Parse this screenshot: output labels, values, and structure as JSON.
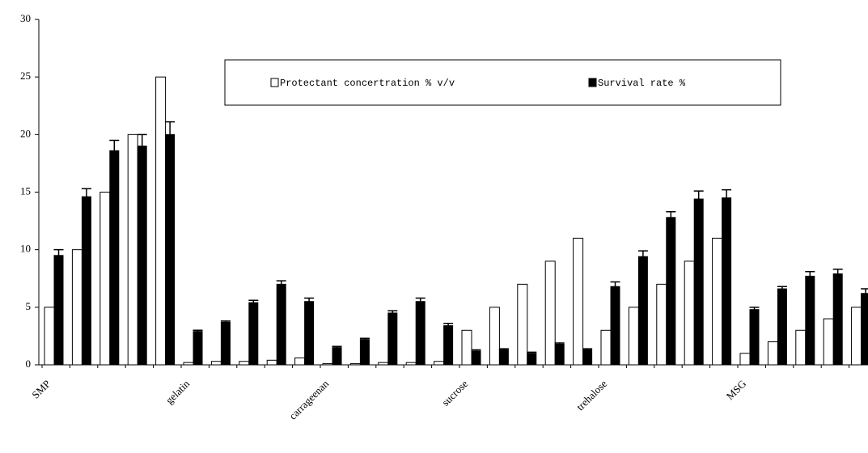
{
  "chart_data": {
    "type": "bar",
    "categories": [
      "SMP",
      null,
      null,
      null,
      null,
      "gelatin",
      null,
      null,
      null,
      null,
      "carrageenan",
      null,
      null,
      null,
      null,
      "sucrose",
      null,
      null,
      null,
      null,
      "trehalose",
      null,
      null,
      null,
      null,
      "MSG",
      null,
      null,
      null,
      null
    ],
    "series": [
      {
        "name": "Protectant concertration % v/v",
        "color": "#ffffff",
        "values": [
          5,
          10,
          15,
          20,
          25,
          0.2,
          0.3,
          0.3,
          0.4,
          0.6,
          0.1,
          0.1,
          0.2,
          0.2,
          0.3,
          3,
          5,
          7,
          9,
          11,
          3,
          5,
          7,
          9,
          11,
          1,
          2,
          3,
          4,
          5
        ]
      },
      {
        "name": "Survival rate %",
        "color": "#000000",
        "values": [
          9.5,
          14.6,
          18.6,
          19,
          20,
          2.9,
          3.7,
          5.4,
          7.0,
          5.5,
          1.5,
          2.2,
          4.5,
          5.5,
          3.4,
          1.2,
          1.3,
          1.0,
          1.8,
          1.3,
          6.8,
          9.4,
          12.8,
          14.4,
          14.5,
          4.8,
          6.6,
          7.7,
          7.9,
          6.2
        ],
        "errors": [
          0.5,
          0.7,
          0.9,
          1,
          1.1,
          0.1,
          0.1,
          0.2,
          0.3,
          0.3,
          0.1,
          0.1,
          0.2,
          0.3,
          0.2,
          0.1,
          0.1,
          0.1,
          0.1,
          0.1,
          0.4,
          0.5,
          0.5,
          0.7,
          0.7,
          0.2,
          0.2,
          0.4,
          0.4,
          0.4
        ]
      }
    ],
    "ylim": [
      0,
      30
    ],
    "yticks": [
      0,
      5,
      10,
      15,
      20,
      25,
      30
    ],
    "legend": "top-right"
  }
}
